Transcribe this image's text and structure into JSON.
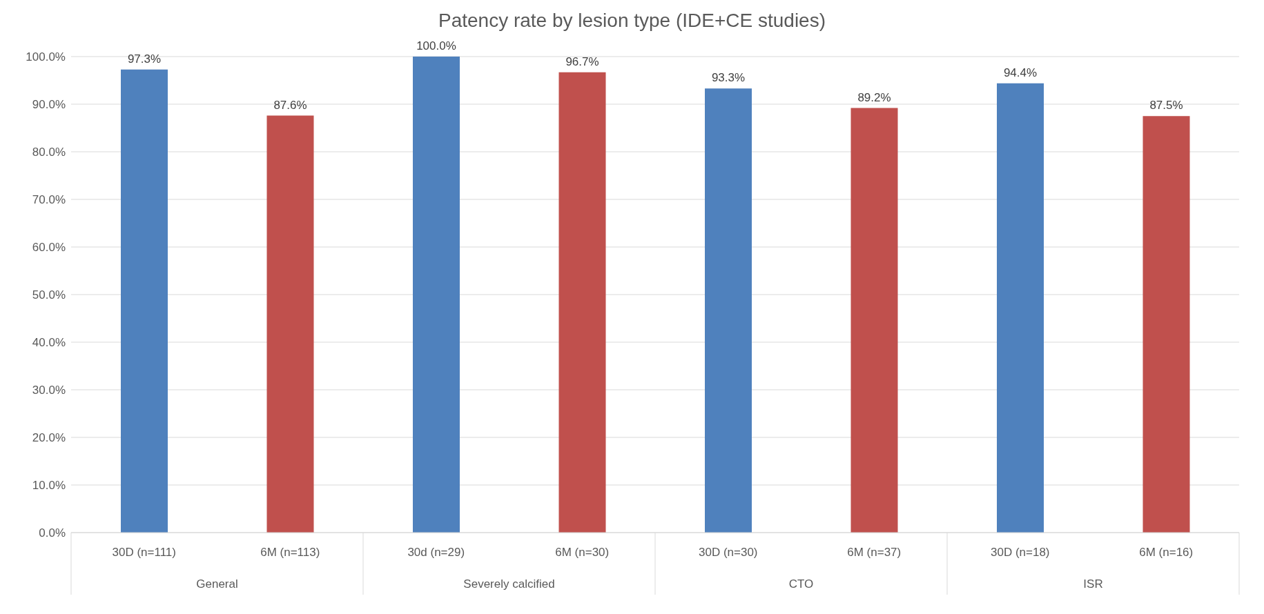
{
  "chart_data": {
    "type": "bar",
    "title": "Patency rate by lesion type (IDE+CE studies)",
    "categories": [
      "30D (n=111)",
      "6M (n=113)",
      "30d (n=29)",
      "6M (n=30)",
      "30D (n=30)",
      "6M (n=37)",
      "30D (n=18)",
      "6M (n=16)"
    ],
    "values": [
      97.3,
      87.6,
      100.0,
      96.7,
      93.3,
      89.2,
      94.4,
      87.5
    ],
    "colors": [
      "#4f81bd",
      "#c0504d",
      "#4f81bd",
      "#c0504d",
      "#4f81bd",
      "#c0504d",
      "#4f81bd",
      "#c0504d"
    ],
    "value_labels": [
      "97.3%",
      "87.6%",
      "100.0%",
      "96.7%",
      "93.3%",
      "89.2%",
      "94.4%",
      "87.5%"
    ],
    "annotations": [
      "General",
      "Severely calcified",
      "CTO",
      "ISR"
    ],
    "ylim": [
      0,
      100
    ],
    "yticks": [
      {
        "value": 0,
        "label": "0.0%"
      },
      {
        "value": 10,
        "label": "10.0%"
      },
      {
        "value": 20,
        "label": "20.0%"
      },
      {
        "value": 30,
        "label": "30.0%"
      },
      {
        "value": 40,
        "label": "40.0%"
      },
      {
        "value": 50,
        "label": "50.0%"
      },
      {
        "value": 60,
        "label": "60.0%"
      },
      {
        "value": 70,
        "label": "70.0%"
      },
      {
        "value": 80,
        "label": "80.0%"
      },
      {
        "value": 90,
        "label": "90.0%"
      },
      {
        "value": 100,
        "label": "100.0%"
      }
    ],
    "grid": "y",
    "legend": false
  }
}
